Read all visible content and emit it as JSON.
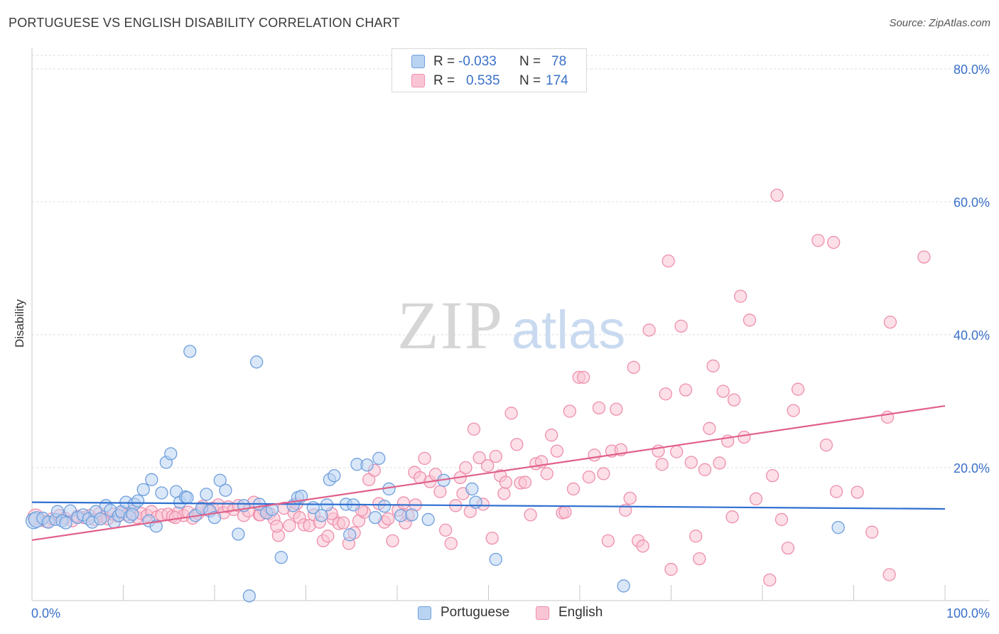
{
  "chart_data": {
    "type": "scatter",
    "title": "PORTUGUESE VS ENGLISH DISABILITY CORRELATION CHART",
    "source": "Source: ZipAtlas.com",
    "ylabel": "Disability",
    "xlim": [
      0,
      100
    ],
    "ylim": [
      0,
      80
    ],
    "x_tick_labels": [
      "0.0%",
      "100.0%"
    ],
    "y_tick_labels": [
      "20.0%",
      "40.0%",
      "60.0%",
      "80.0%"
    ],
    "y_ticks": [
      20,
      40,
      60,
      80
    ],
    "grid": "horizontal dashed",
    "watermark": {
      "zip": "ZIP",
      "atlas": "atlas"
    },
    "legend_stats": [
      {
        "r_label": "R =",
        "r_value": "-0.033",
        "n_label": "N =",
        "n_value": "78"
      },
      {
        "r_label": "R =",
        "r_value": "0.535",
        "n_label": "N =",
        "n_value": "174"
      }
    ],
    "series": [
      {
        "name": "Portuguese",
        "color": "#6f9fdd",
        "fill": "#b9d3f2",
        "trend": {
          "x": [
            0,
            100
          ],
          "y": [
            14.8,
            13.8
          ]
        },
        "points": [
          [
            0.2,
            12.0
          ],
          [
            0.5,
            12.2
          ],
          [
            1.2,
            12.4
          ],
          [
            1.8,
            11.8
          ],
          [
            2.6,
            12.2
          ],
          [
            2.8,
            13.4
          ],
          [
            3.3,
            12.0
          ],
          [
            3.7,
            11.7
          ],
          [
            4.2,
            13.5
          ],
          [
            5.0,
            12.5
          ],
          [
            5.6,
            12.9
          ],
          [
            6.2,
            12.3
          ],
          [
            6.6,
            11.8
          ],
          [
            7.0,
            13.4
          ],
          [
            7.5,
            12.3
          ],
          [
            8.1,
            14.3
          ],
          [
            8.6,
            13.6
          ],
          [
            9.0,
            11.8
          ],
          [
            9.5,
            12.8
          ],
          [
            9.8,
            13.4
          ],
          [
            10.3,
            14.8
          ],
          [
            10.7,
            12.6
          ],
          [
            11.2,
            14.5
          ],
          [
            11.6,
            15.0
          ],
          [
            12.2,
            16.7
          ],
          [
            12.8,
            12.0
          ],
          [
            13.1,
            18.2
          ],
          [
            13.6,
            11.2
          ],
          [
            14.2,
            16.2
          ],
          [
            14.7,
            20.8
          ],
          [
            15.2,
            22.1
          ],
          [
            15.8,
            16.4
          ],
          [
            16.2,
            14.8
          ],
          [
            16.8,
            15.6
          ],
          [
            17.3,
            37.5
          ],
          [
            17.9,
            12.8
          ],
          [
            18.6,
            13.9
          ],
          [
            19.1,
            16.0
          ],
          [
            19.5,
            13.5
          ],
          [
            20.0,
            12.5
          ],
          [
            20.6,
            18.1
          ],
          [
            21.2,
            16.6
          ],
          [
            22.6,
            10.0
          ],
          [
            23.2,
            14.3
          ],
          [
            23.8,
            0.7
          ],
          [
            24.6,
            35.9
          ],
          [
            24.9,
            14.5
          ],
          [
            25.7,
            13.2
          ],
          [
            26.3,
            13.7
          ],
          [
            27.3,
            6.5
          ],
          [
            28.6,
            14.3
          ],
          [
            29.1,
            15.5
          ],
          [
            29.5,
            15.7
          ],
          [
            30.8,
            14.0
          ],
          [
            31.7,
            12.8
          ],
          [
            32.3,
            14.4
          ],
          [
            32.6,
            18.2
          ],
          [
            33.1,
            18.8
          ],
          [
            34.4,
            14.5
          ],
          [
            34.8,
            9.9
          ],
          [
            35.2,
            14.4
          ],
          [
            35.6,
            20.5
          ],
          [
            36.7,
            20.4
          ],
          [
            37.6,
            12.5
          ],
          [
            38.0,
            21.4
          ],
          [
            38.6,
            14.2
          ],
          [
            39.1,
            16.8
          ],
          [
            40.4,
            12.8
          ],
          [
            41.6,
            12.9
          ],
          [
            43.4,
            12.2
          ],
          [
            45.1,
            18.1
          ],
          [
            48.2,
            16.8
          ],
          [
            48.6,
            14.8
          ],
          [
            50.8,
            6.2
          ],
          [
            64.8,
            2.2
          ],
          [
            88.3,
            11.0
          ],
          [
            17.0,
            15.5
          ],
          [
            11.0,
            13.0
          ]
        ]
      },
      {
        "name": "English",
        "color": "#ee8fac",
        "fill": "#f9c5d4",
        "trend": {
          "x": [
            0,
            100
          ],
          "y": [
            9.1,
            29.3
          ]
        },
        "points": [
          [
            0.4,
            12.6
          ],
          [
            1.0,
            12.1
          ],
          [
            1.6,
            11.9
          ],
          [
            2.2,
            12.3
          ],
          [
            3.0,
            12.8
          ],
          [
            3.6,
            12.4
          ],
          [
            4.4,
            12.0
          ],
          [
            5.0,
            12.7
          ],
          [
            5.7,
            12.5
          ],
          [
            6.3,
            12.8
          ],
          [
            6.9,
            12.2
          ],
          [
            7.4,
            13.1
          ],
          [
            7.8,
            12.6
          ],
          [
            8.3,
            12.3
          ],
          [
            8.9,
            13.0
          ],
          [
            9.4,
            12.7
          ],
          [
            9.9,
            13.2
          ],
          [
            10.4,
            12.9
          ],
          [
            10.9,
            13.4
          ],
          [
            11.5,
            12.5
          ],
          [
            12.0,
            13.1
          ],
          [
            12.6,
            12.8
          ],
          [
            13.1,
            13.4
          ],
          [
            13.7,
            12.6
          ],
          [
            14.2,
            12.9
          ],
          [
            14.9,
            13.0
          ],
          [
            15.4,
            12.7
          ],
          [
            16.0,
            13.2
          ],
          [
            16.6,
            12.8
          ],
          [
            17.1,
            13.3
          ],
          [
            17.6,
            12.4
          ],
          [
            18.2,
            13.1
          ],
          [
            18.7,
            14.2
          ],
          [
            19.3,
            13.6
          ],
          [
            19.8,
            13.9
          ],
          [
            20.4,
            14.4
          ],
          [
            21.0,
            13.2
          ],
          [
            21.5,
            14.1
          ],
          [
            22.1,
            13.7
          ],
          [
            22.6,
            14.3
          ],
          [
            23.2,
            12.8
          ],
          [
            23.7,
            13.5
          ],
          [
            24.3,
            14.8
          ],
          [
            24.9,
            12.9
          ],
          [
            25.4,
            13.6
          ],
          [
            26.0,
            13.1
          ],
          [
            26.5,
            12.3
          ],
          [
            27.0,
            9.8
          ],
          [
            27.6,
            13.9
          ],
          [
            28.2,
            11.3
          ],
          [
            28.7,
            13.2
          ],
          [
            29.3,
            12.5
          ],
          [
            29.8,
            11.4
          ],
          [
            30.4,
            11.3
          ],
          [
            30.9,
            12.9
          ],
          [
            31.5,
            11.8
          ],
          [
            31.9,
            9.0
          ],
          [
            32.4,
            9.7
          ],
          [
            33.0,
            12.3
          ],
          [
            33.6,
            11.6
          ],
          [
            34.1,
            11.7
          ],
          [
            34.7,
            8.6
          ],
          [
            35.3,
            10.2
          ],
          [
            35.8,
            12.0
          ],
          [
            36.4,
            13.3
          ],
          [
            36.9,
            18.2
          ],
          [
            37.5,
            19.6
          ],
          [
            38.0,
            14.6
          ],
          [
            38.6,
            11.8
          ],
          [
            39.0,
            12.3
          ],
          [
            39.5,
            9.0
          ],
          [
            40.1,
            13.6
          ],
          [
            40.7,
            14.7
          ],
          [
            41.2,
            12.8
          ],
          [
            41.9,
            19.3
          ],
          [
            42.5,
            18.5
          ],
          [
            43.0,
            21.4
          ],
          [
            43.6,
            17.9
          ],
          [
            44.2,
            19.0
          ],
          [
            44.7,
            16.4
          ],
          [
            45.3,
            10.6
          ],
          [
            45.9,
            8.6
          ],
          [
            46.4,
            14.3
          ],
          [
            46.9,
            18.5
          ],
          [
            47.5,
            20.0
          ],
          [
            48.0,
            13.4
          ],
          [
            48.4,
            25.8
          ],
          [
            49.0,
            21.5
          ],
          [
            49.4,
            14.5
          ],
          [
            49.9,
            20.3
          ],
          [
            50.4,
            9.4
          ],
          [
            50.8,
            21.7
          ],
          [
            51.3,
            18.8
          ],
          [
            51.7,
            16.1
          ],
          [
            52.5,
            28.2
          ],
          [
            53.1,
            23.5
          ],
          [
            53.5,
            17.7
          ],
          [
            54.0,
            17.8
          ],
          [
            54.6,
            12.9
          ],
          [
            55.2,
            20.6
          ],
          [
            55.8,
            20.9
          ],
          [
            56.4,
            19.1
          ],
          [
            56.9,
            24.9
          ],
          [
            57.5,
            22.5
          ],
          [
            58.1,
            13.2
          ],
          [
            58.9,
            28.5
          ],
          [
            59.3,
            16.8
          ],
          [
            59.9,
            33.6
          ],
          [
            60.4,
            33.6
          ],
          [
            61.0,
            18.6
          ],
          [
            61.6,
            21.9
          ],
          [
            62.1,
            29.0
          ],
          [
            62.6,
            19.1
          ],
          [
            63.1,
            9.0
          ],
          [
            63.5,
            22.5
          ],
          [
            64.0,
            28.8
          ],
          [
            64.5,
            22.7
          ],
          [
            65.0,
            13.6
          ],
          [
            65.5,
            15.4
          ],
          [
            65.9,
            35.1
          ],
          [
            66.4,
            9.0
          ],
          [
            66.9,
            8.2
          ],
          [
            67.6,
            40.7
          ],
          [
            68.6,
            22.5
          ],
          [
            69.0,
            20.5
          ],
          [
            69.4,
            31.1
          ],
          [
            69.7,
            51.1
          ],
          [
            70.0,
            4.7
          ],
          [
            70.6,
            22.4
          ],
          [
            71.1,
            41.3
          ],
          [
            71.6,
            31.7
          ],
          [
            72.2,
            20.8
          ],
          [
            72.7,
            9.7
          ],
          [
            73.1,
            6.3
          ],
          [
            73.7,
            19.7
          ],
          [
            74.2,
            25.9
          ],
          [
            74.6,
            35.3
          ],
          [
            75.3,
            20.7
          ],
          [
            75.7,
            31.5
          ],
          [
            76.2,
            24.0
          ],
          [
            76.7,
            12.6
          ],
          [
            76.9,
            30.2
          ],
          [
            77.6,
            45.8
          ],
          [
            78.0,
            24.6
          ],
          [
            78.6,
            42.2
          ],
          [
            79.3,
            15.3
          ],
          [
            80.8,
            3.1
          ],
          [
            81.1,
            18.8
          ],
          [
            81.6,
            61.0
          ],
          [
            82.1,
            12.2
          ],
          [
            82.8,
            7.9
          ],
          [
            83.4,
            28.6
          ],
          [
            83.9,
            31.8
          ],
          [
            86.1,
            54.2
          ],
          [
            87.0,
            23.4
          ],
          [
            87.8,
            53.9
          ],
          [
            88.1,
            16.4
          ],
          [
            90.4,
            16.3
          ],
          [
            92.0,
            10.3
          ],
          [
            93.7,
            27.6
          ],
          [
            93.9,
            3.9
          ],
          [
            94.0,
            41.9
          ],
          [
            97.7,
            51.7
          ],
          [
            51.9,
            17.8
          ],
          [
            47.2,
            16.1
          ],
          [
            58.4,
            13.3
          ],
          [
            25.0,
            12.9
          ],
          [
            26.8,
            11.2
          ],
          [
            29.0,
            14.6
          ],
          [
            32.8,
            13.1
          ],
          [
            36.1,
            13.6
          ],
          [
            40.9,
            11.7
          ],
          [
            42.0,
            14.4
          ],
          [
            15.7,
            12.5
          ]
        ]
      }
    ]
  }
}
